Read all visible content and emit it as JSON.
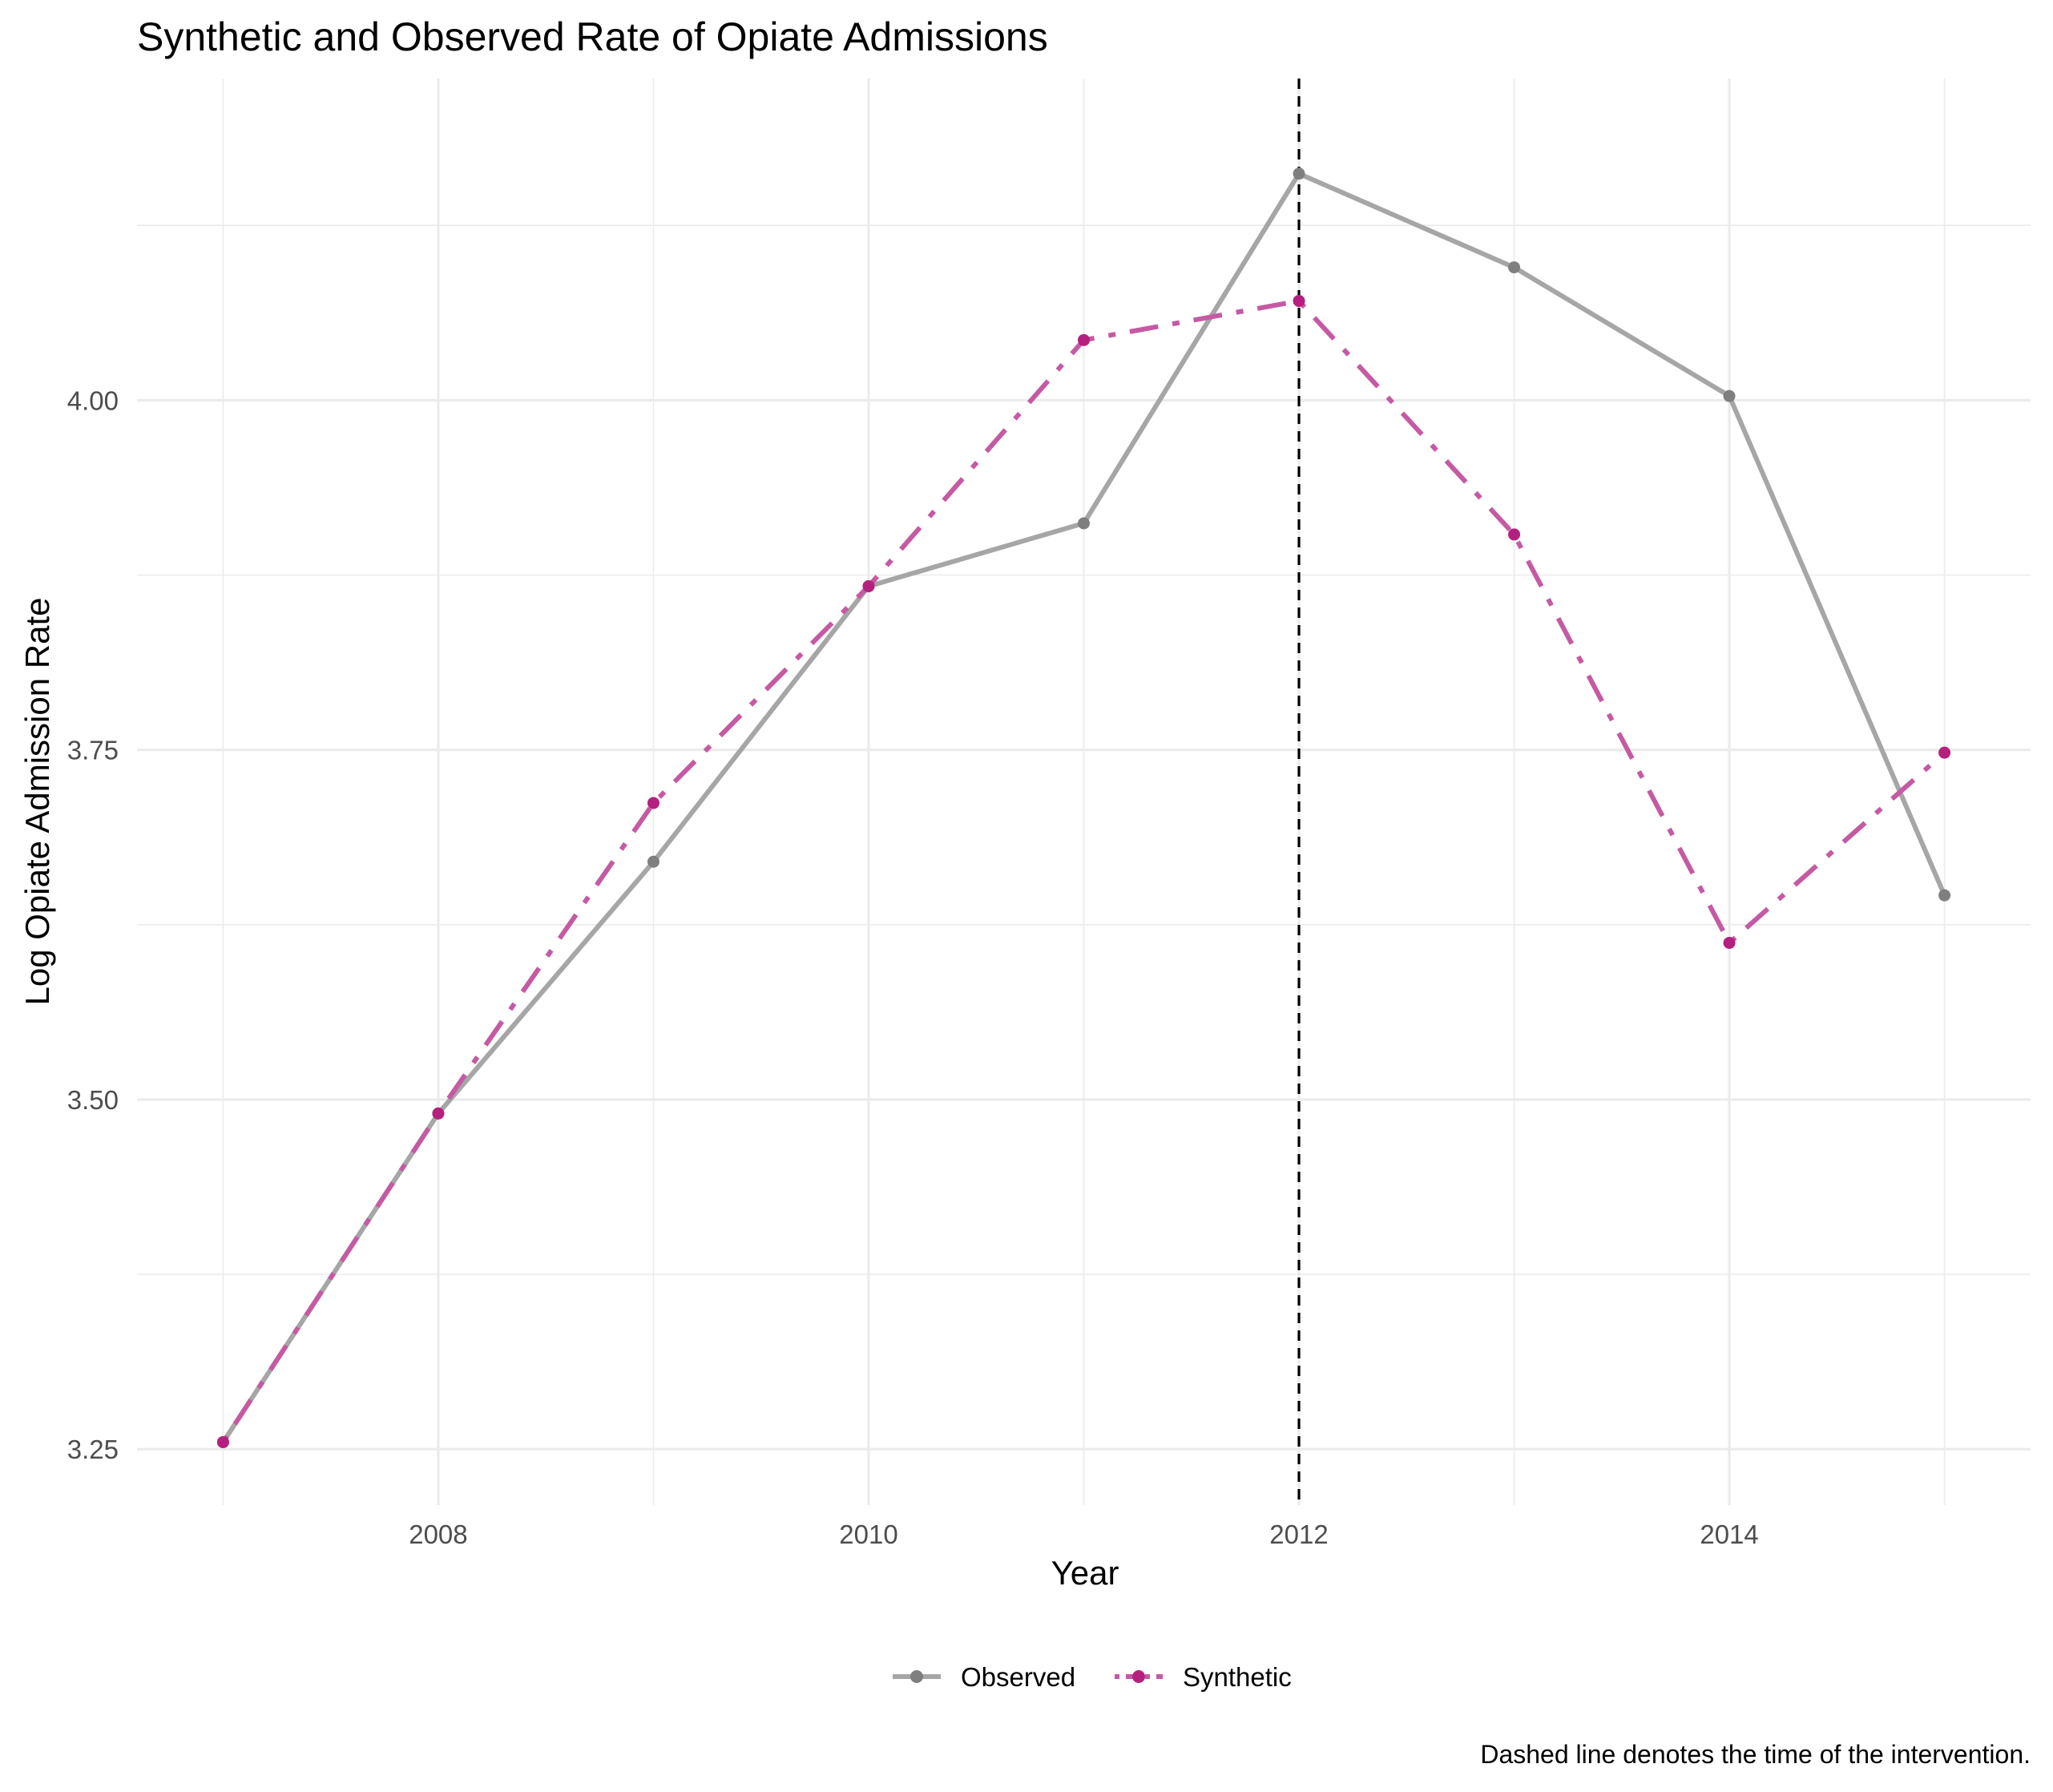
{
  "chart_data": {
    "type": "line",
    "title": "Synthetic and Observed Rate of Opiate Admissions",
    "xlabel": "Year",
    "ylabel": "Log Opiate Admission Rate",
    "caption": "Dashed line denotes the time of the intervention.",
    "xlim": [
      2006.6,
      2015.4
    ],
    "ylim": [
      3.21,
      4.23
    ],
    "x_ticks": [
      2008,
      2010,
      2012,
      2014
    ],
    "x_tick_labels": [
      "2008",
      "2010",
      "2012",
      "2014"
    ],
    "y_ticks": [
      3.25,
      3.5,
      3.75,
      4.0
    ],
    "y_tick_labels": [
      "3.25",
      "3.50",
      "3.75",
      "4.00"
    ],
    "grid": true,
    "legend_position": "bottom",
    "intervention_year": 2012,
    "x": [
      2007,
      2008,
      2009,
      2010,
      2011,
      2012,
      2013,
      2014,
      2015
    ],
    "series": [
      {
        "name": "Observed",
        "color": "#a6a6a6",
        "point_color": "#7f7f7f",
        "line_style": "solid",
        "values": [
          3.255,
          3.49,
          3.67,
          3.867,
          3.912,
          4.162,
          4.095,
          4.003,
          3.646
        ]
      },
      {
        "name": "Synthetic",
        "color": "#c55aa3",
        "point_color": "#b5207f",
        "line_style": "dotdash",
        "values": [
          3.255,
          3.49,
          3.712,
          3.867,
          4.043,
          4.071,
          3.904,
          3.612,
          3.748
        ]
      }
    ]
  }
}
